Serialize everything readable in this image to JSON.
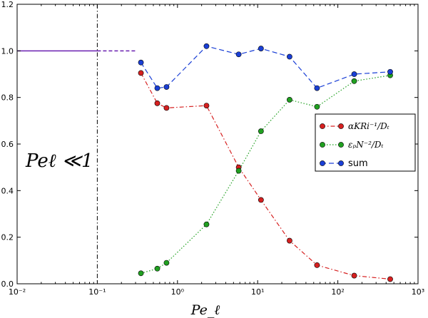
{
  "chart_data": {
    "type": "line",
    "xscale": "log",
    "xlim": [
      0.01,
      1000
    ],
    "ylim": [
      0.0,
      1.2
    ],
    "xlabel": "Pe_ℓ",
    "ylabel": "",
    "x_tick_labels": [
      "10⁻²",
      "10⁻¹",
      "10⁰",
      "10¹",
      "10²",
      "10³"
    ],
    "x_tick_values": [
      0.01,
      0.1,
      1,
      10,
      100,
      1000
    ],
    "y_tick_labels": [
      "0.0",
      "0.2",
      "0.4",
      "0.6",
      "0.8",
      "1.0",
      "1.2"
    ],
    "y_tick_values": [
      0.0,
      0.2,
      0.4,
      0.6,
      0.8,
      1.0,
      1.2
    ],
    "annotation": "Peℓ ≪1",
    "vertical_line_x": 0.1,
    "reference_line": {
      "x": [
        0.01,
        0.1
      ],
      "y": [
        1.0,
        1.0
      ],
      "color": "#6a1fb0"
    },
    "reference_dashed": {
      "x": [
        0.1,
        0.3
      ],
      "y": [
        1.0,
        1.0
      ],
      "color": "#6a1fb0"
    },
    "series": [
      {
        "name": "αKRi⁻¹/Dₜ",
        "color": "#d62020",
        "linestyle": "dashdot",
        "x": [
          0.35,
          0.56,
          0.73,
          2.3,
          5.8,
          11,
          25,
          55,
          160,
          450
        ],
        "y": [
          0.905,
          0.775,
          0.755,
          0.765,
          0.5,
          0.36,
          0.185,
          0.08,
          0.035,
          0.02
        ]
      },
      {
        "name": "εₚN⁻²/Dₜ",
        "color": "#20a020",
        "linestyle": "dotted",
        "x": [
          0.35,
          0.56,
          0.73,
          2.3,
          5.8,
          11,
          25,
          55,
          160,
          450
        ],
        "y": [
          0.045,
          0.065,
          0.09,
          0.255,
          0.485,
          0.655,
          0.79,
          0.76,
          0.87,
          0.895
        ]
      },
      {
        "name": "sum",
        "color": "#1a3fd6",
        "linestyle": "dashed",
        "x": [
          0.35,
          0.56,
          0.73,
          2.3,
          5.8,
          11,
          25,
          55,
          160,
          450
        ],
        "y": [
          0.95,
          0.84,
          0.845,
          1.02,
          0.985,
          1.01,
          0.975,
          0.84,
          0.9,
          0.91
        ]
      }
    ],
    "legend_position": "right"
  }
}
